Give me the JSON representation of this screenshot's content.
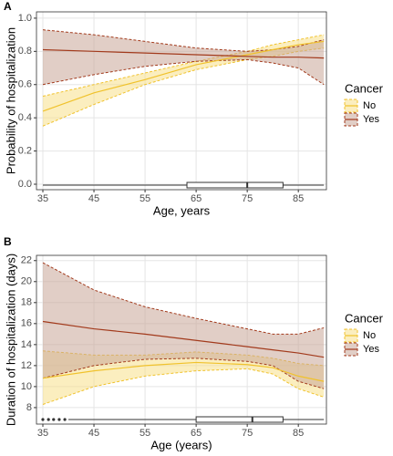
{
  "chart_data": [
    {
      "type": "line",
      "panel_label": "A",
      "xlabel": "Age, years",
      "ylabel": "Probability of hospitalization",
      "legend_title": "Cancer",
      "x": [
        35,
        45,
        55,
        65,
        75,
        80,
        85,
        90
      ],
      "xlim": [
        33.75,
        90.5
      ],
      "xticks": [
        35,
        45,
        55,
        65,
        75,
        85
      ],
      "ylim": [
        -0.033,
        1.038
      ],
      "yticks": [
        {
          "value": 0,
          "label": "0.0"
        },
        0.2,
        0.4,
        0.6,
        0.8,
        {
          "value": 1,
          "label": "1.0"
        }
      ],
      "grid": true,
      "series": [
        {
          "name": "No",
          "color": "#f0c22c",
          "fill": "#f7e08a",
          "values": [
            0.44,
            0.55,
            0.63,
            0.72,
            0.78,
            0.81,
            0.84,
            0.86
          ],
          "lower": [
            0.35,
            0.48,
            0.6,
            0.69,
            0.75,
            0.77,
            0.8,
            0.82
          ],
          "upper": [
            0.53,
            0.6,
            0.67,
            0.74,
            0.8,
            0.84,
            0.87,
            0.9
          ]
        },
        {
          "name": "Yes",
          "color": "#a23a1c",
          "fill": "#c9a597",
          "values": [
            0.81,
            0.8,
            0.79,
            0.78,
            0.77,
            0.765,
            0.765,
            0.76
          ],
          "lower": [
            0.6,
            0.66,
            0.71,
            0.74,
            0.75,
            0.73,
            0.7,
            0.6
          ],
          "upper": [
            0.93,
            0.9,
            0.86,
            0.82,
            0.8,
            0.81,
            0.83,
            0.87
          ]
        }
      ],
      "boxplot": {
        "min": 35,
        "q1": 63.2,
        "median": 75,
        "q3": 82,
        "max": 90,
        "outliers": []
      }
    },
    {
      "type": "line",
      "panel_label": "B",
      "xlabel": "Age (years)",
      "ylabel": "Duration of hospitalization (days)",
      "legend_title": "Cancer",
      "x": [
        35,
        45,
        55,
        65,
        75,
        80,
        85,
        90
      ],
      "xlim": [
        33.75,
        90.5
      ],
      "xticks": [
        35,
        45,
        55,
        65,
        75,
        85
      ],
      "ylim": [
        6.43,
        22.5
      ],
      "yticks": [
        8,
        10,
        12,
        14,
        16,
        18,
        20,
        22
      ],
      "grid": true,
      "series": [
        {
          "name": "No",
          "color": "#f0c22c",
          "fill": "#f7e08a",
          "values": [
            10.8,
            11.5,
            12.0,
            12.3,
            12.1,
            11.8,
            11.0,
            10.5
          ],
          "lower": [
            8.3,
            10.0,
            11.0,
            11.5,
            11.7,
            11.2,
            9.8,
            9.0
          ],
          "upper": [
            13.4,
            13.0,
            13.0,
            13.3,
            13.0,
            12.7,
            12.2,
            12.0
          ]
        },
        {
          "name": "Yes",
          "color": "#a23a1c",
          "fill": "#c9a597",
          "values": [
            16.2,
            15.5,
            15.0,
            14.4,
            13.8,
            13.5,
            13.2,
            12.8
          ],
          "lower": [
            10.8,
            12.0,
            12.6,
            12.7,
            12.4,
            12.0,
            10.5,
            9.8
          ],
          "upper": [
            21.8,
            19.2,
            17.6,
            16.5,
            15.5,
            15.0,
            15.0,
            15.6
          ]
        }
      ],
      "boxplot": {
        "min": 40,
        "q1": 65,
        "median": 76,
        "q3": 82,
        "max": 90,
        "outliers": [
          35,
          36.1,
          37.1,
          38.2,
          39.3
        ]
      }
    }
  ]
}
